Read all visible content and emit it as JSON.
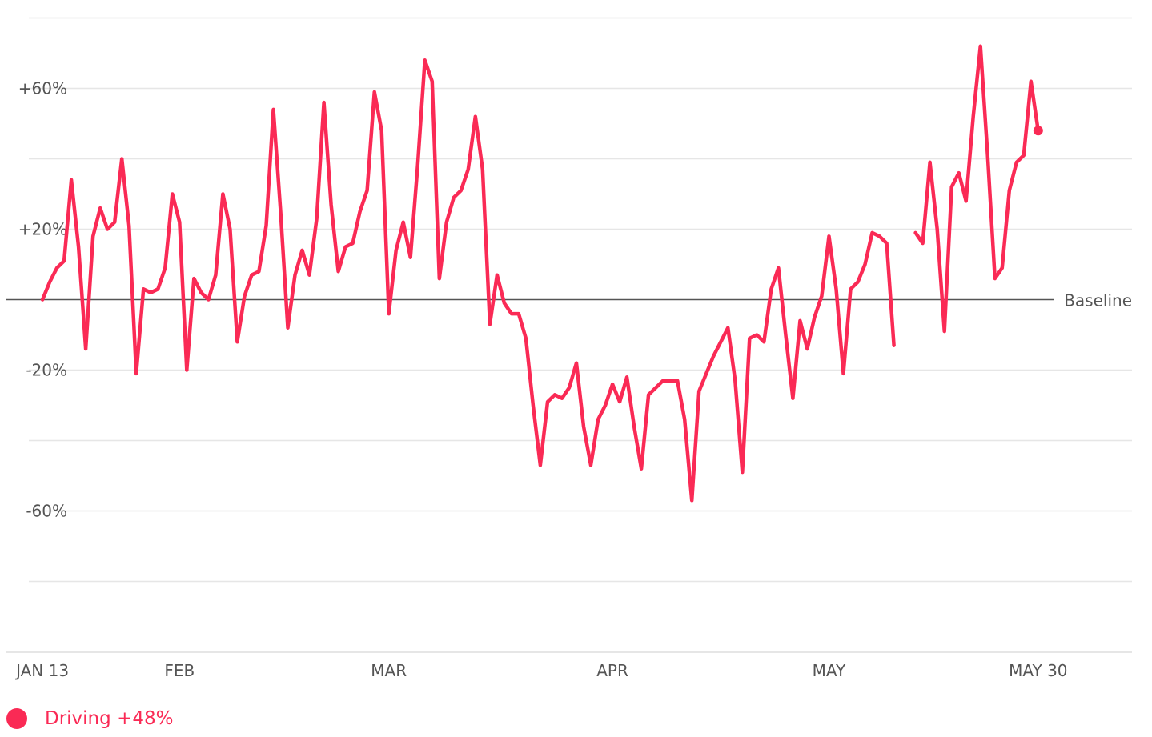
{
  "chart_data": {
    "type": "line",
    "baseline_label": "Baseline",
    "y_ticks": [
      "+60%",
      "+20%",
      "-20%",
      "-60%"
    ],
    "y_tick_values": [
      60,
      20,
      -20,
      -60
    ],
    "ylim": [
      -100,
      80
    ],
    "grid": true,
    "x_ticks": [
      {
        "label": "JAN 13",
        "date": "2020-01-13"
      },
      {
        "label": "FEB",
        "date": "2020-02-01"
      },
      {
        "label": "MAR",
        "date": "2020-03-01"
      },
      {
        "label": "APR",
        "date": "2020-04-01"
      },
      {
        "label": "MAY",
        "date": "2020-05-01"
      },
      {
        "label": "MAY 30",
        "date": "2020-05-30"
      }
    ],
    "x_range": [
      "2020-01-08",
      "2020-06-12"
    ],
    "series": [
      {
        "name": "Driving",
        "color": "#fa2a55",
        "start_date": "2020-01-13",
        "values": [
          0,
          5,
          9,
          11,
          34,
          15,
          -14,
          18,
          26,
          20,
          22,
          40,
          21,
          -21,
          3,
          2,
          3,
          9,
          30,
          22,
          -20,
          6,
          2,
          0,
          7,
          30,
          20,
          -12,
          1,
          7,
          8,
          21,
          54,
          25,
          -8,
          7,
          14,
          7,
          23,
          56,
          27,
          8,
          15,
          16,
          25,
          31,
          59,
          48,
          -4,
          14,
          22,
          12,
          38,
          68,
          62,
          6,
          22,
          29,
          31,
          37,
          52,
          37,
          -7,
          7,
          -1,
          -4,
          -4,
          -11,
          -30,
          -47,
          -29,
          -27,
          -28,
          -25,
          -18,
          -36,
          -47,
          -34,
          -30,
          -24,
          -29,
          -22,
          -36,
          -48,
          -27,
          -25,
          -23,
          -23,
          -23,
          -34,
          -57,
          -26,
          -21,
          -16,
          -12,
          -8,
          -23,
          -49,
          -11,
          -10,
          -12,
          3,
          9,
          -10,
          -28,
          -6,
          -14,
          -5,
          1,
          18,
          3,
          -21,
          3,
          5,
          10,
          19,
          18,
          16,
          -13,
          null,
          null,
          19,
          16,
          39,
          20,
          -9,
          32,
          36,
          28,
          52,
          72,
          41,
          6,
          9,
          31,
          39,
          41,
          62,
          48
        ],
        "label": "Driving",
        "last_value_text": "+48%"
      }
    ]
  }
}
